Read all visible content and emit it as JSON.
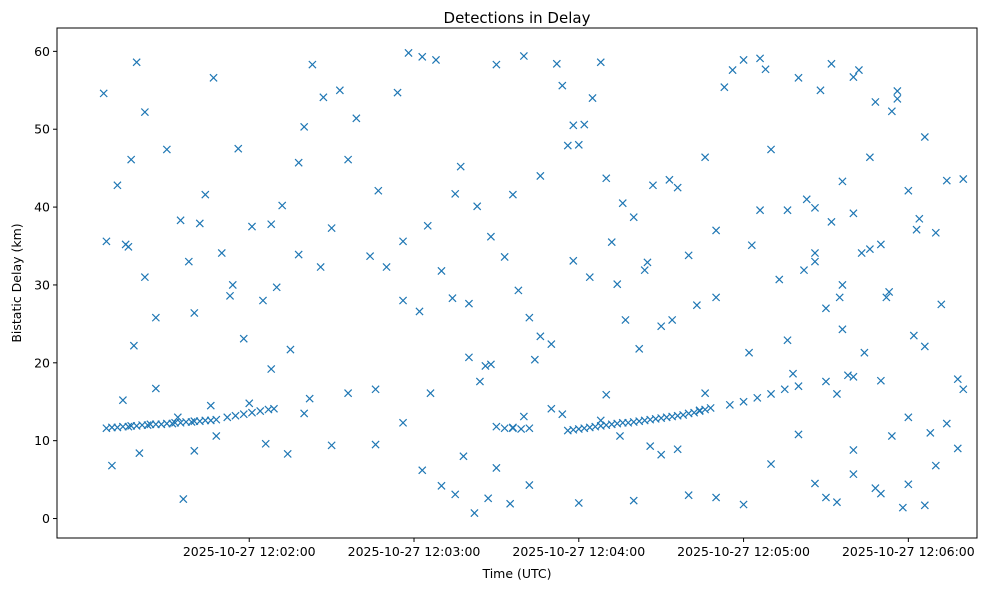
{
  "chart_data": {
    "type": "scatter",
    "title": "Detections in Delay",
    "xlabel": "Time (UTC)",
    "ylabel": "Bistatic Delay (km)",
    "x_range_seconds": [
      "2025-10-27 12:00:50",
      "2025-10-27 12:06:25"
    ],
    "ylim": [
      -2.5,
      63
    ],
    "x_ticks": [
      "2025-10-27 12:02:00",
      "2025-10-27 12:03:00",
      "2025-10-27 12:04:00",
      "2025-10-27 12:05:00",
      "2025-10-27 12:06:00"
    ],
    "y_ticks": [
      "0",
      "10",
      "20",
      "30",
      "40",
      "50",
      "60"
    ],
    "marker": "x",
    "color": "#1f77b4",
    "grid": false,
    "points": [
      [
        "2025-10-27 12:01:08",
        11.6
      ],
      [
        "2025-10-27 12:01:10",
        11.7
      ],
      [
        "2025-10-27 12:01:12",
        11.7
      ],
      [
        "2025-10-27 12:01:14",
        11.8
      ],
      [
        "2025-10-27 12:01:16",
        11.8
      ],
      [
        "2025-10-27 12:01:17",
        11.9
      ],
      [
        "2025-10-27 12:01:19",
        11.9
      ],
      [
        "2025-10-27 12:01:21",
        12.0
      ],
      [
        "2025-10-27 12:01:23",
        12.0
      ],
      [
        "2025-10-27 12:01:24",
        12.1
      ],
      [
        "2025-10-27 12:01:26",
        12.1
      ],
      [
        "2025-10-27 12:01:28",
        12.1
      ],
      [
        "2025-10-27 12:01:30",
        12.2
      ],
      [
        "2025-10-27 12:01:32",
        12.2
      ],
      [
        "2025-10-27 12:01:33",
        12.3
      ],
      [
        "2025-10-27 12:01:35",
        12.3
      ],
      [
        "2025-10-27 12:01:37",
        12.4
      ],
      [
        "2025-10-27 12:01:39",
        12.4
      ],
      [
        "2025-10-27 12:01:40",
        12.5
      ],
      [
        "2025-10-27 12:01:42",
        12.5
      ],
      [
        "2025-10-27 12:01:44",
        12.6
      ],
      [
        "2025-10-27 12:01:46",
        12.6
      ],
      [
        "2025-10-27 12:01:48",
        12.7
      ],
      [
        "2025-10-27 12:01:52",
        13.0
      ],
      [
        "2025-10-27 12:01:55",
        13.2
      ],
      [
        "2025-10-27 12:01:58",
        13.4
      ],
      [
        "2025-10-27 12:02:01",
        13.6
      ],
      [
        "2025-10-27 12:02:04",
        13.8
      ],
      [
        "2025-10-27 12:02:07",
        14.0
      ],
      [
        "2025-10-27 12:02:09",
        14.1
      ],
      [
        "2025-10-27 12:03:30",
        11.8
      ],
      [
        "2025-10-27 12:03:33",
        11.6
      ],
      [
        "2025-10-27 12:03:36",
        11.7
      ],
      [
        "2025-10-27 12:03:39",
        11.5
      ],
      [
        "2025-10-27 12:03:42",
        11.6
      ],
      [
        "2025-10-27 12:03:56",
        11.3
      ],
      [
        "2025-10-27 12:03:58",
        11.4
      ],
      [
        "2025-10-27 12:04:00",
        11.5
      ],
      [
        "2025-10-27 12:04:02",
        11.6
      ],
      [
        "2025-10-27 12:04:04",
        11.7
      ],
      [
        "2025-10-27 12:04:06",
        11.8
      ],
      [
        "2025-10-27 12:04:08",
        11.9
      ],
      [
        "2025-10-27 12:04:10",
        12.0
      ],
      [
        "2025-10-27 12:04:12",
        12.1
      ],
      [
        "2025-10-27 12:04:14",
        12.2
      ],
      [
        "2025-10-27 12:04:16",
        12.3
      ],
      [
        "2025-10-27 12:04:18",
        12.3
      ],
      [
        "2025-10-27 12:04:20",
        12.4
      ],
      [
        "2025-10-27 12:04:22",
        12.5
      ],
      [
        "2025-10-27 12:04:24",
        12.6
      ],
      [
        "2025-10-27 12:04:26",
        12.7
      ],
      [
        "2025-10-27 12:04:28",
        12.8
      ],
      [
        "2025-10-27 12:04:30",
        12.9
      ],
      [
        "2025-10-27 12:04:32",
        13.0
      ],
      [
        "2025-10-27 12:04:34",
        13.1
      ],
      [
        "2025-10-27 12:04:36",
        13.2
      ],
      [
        "2025-10-27 12:04:38",
        13.3
      ],
      [
        "2025-10-27 12:04:40",
        13.5
      ],
      [
        "2025-10-27 12:04:42",
        13.6
      ],
      [
        "2025-10-27 12:04:44",
        13.8
      ],
      [
        "2025-10-27 12:04:46",
        14.0
      ],
      [
        "2025-10-27 12:04:48",
        14.2
      ],
      [
        "2025-10-27 12:04:55",
        14.6
      ],
      [
        "2025-10-27 12:05:00",
        15.0
      ],
      [
        "2025-10-27 12:05:05",
        15.5
      ],
      [
        "2025-10-27 12:05:10",
        16.0
      ],
      [
        "2025-10-27 12:05:15",
        16.6
      ],
      [
        "2025-10-27 12:05:20",
        17.0
      ],
      [
        "2025-10-27 12:01:07",
        54.6
      ],
      [
        "2025-10-27 12:01:12",
        42.8
      ],
      [
        "2025-10-27 12:01:15",
        35.2
      ],
      [
        "2025-10-27 12:01:17",
        46.1
      ],
      [
        "2025-10-27 12:01:19",
        58.6
      ],
      [
        "2025-10-27 12:01:22",
        52.2
      ],
      [
        "2025-10-27 12:01:26",
        25.8
      ],
      [
        "2025-10-27 12:01:30",
        47.4
      ],
      [
        "2025-10-27 12:01:35",
        38.3
      ],
      [
        "2025-10-27 12:01:38",
        33.0
      ],
      [
        "2025-10-27 12:01:42",
        37.9
      ],
      [
        "2025-10-27 12:01:44",
        41.6
      ],
      [
        "2025-10-27 12:01:47",
        56.6
      ],
      [
        "2025-10-27 12:01:50",
        34.1
      ],
      [
        "2025-10-27 12:01:53",
        28.6
      ],
      [
        "2025-10-27 12:01:56",
        47.5
      ],
      [
        "2025-10-27 12:01:58",
        23.1
      ],
      [
        "2025-10-27 12:02:01",
        37.5
      ],
      [
        "2025-10-27 12:02:05",
        28.0
      ],
      [
        "2025-10-27 12:02:08",
        37.8
      ],
      [
        "2025-10-27 12:02:12",
        40.2
      ],
      [
        "2025-10-27 12:02:15",
        21.7
      ],
      [
        "2025-10-27 12:02:18",
        45.7
      ],
      [
        "2025-10-27 12:02:20",
        50.3
      ],
      [
        "2025-10-27 12:02:23",
        58.3
      ],
      [
        "2025-10-27 12:02:27",
        54.1
      ],
      [
        "2025-10-27 12:02:30",
        37.3
      ],
      [
        "2025-10-27 12:02:33",
        55.0
      ],
      [
        "2025-10-27 12:02:36",
        46.1
      ],
      [
        "2025-10-27 12:02:39",
        51.4
      ],
      [
        "2025-10-27 12:02:44",
        33.7
      ],
      [
        "2025-10-27 12:02:47",
        42.1
      ],
      [
        "2025-10-27 12:02:50",
        32.3
      ],
      [
        "2025-10-27 12:02:54",
        54.7
      ],
      [
        "2025-10-27 12:02:56",
        28.0
      ],
      [
        "2025-10-27 12:02:58",
        59.8
      ],
      [
        "2025-10-27 12:03:03",
        59.3
      ],
      [
        "2025-10-27 12:03:05",
        37.6
      ],
      [
        "2025-10-27 12:03:08",
        58.9
      ],
      [
        "2025-10-27 12:03:10",
        31.8
      ],
      [
        "2025-10-27 12:03:15",
        41.7
      ],
      [
        "2025-10-27 12:03:17",
        45.2
      ],
      [
        "2025-10-27 12:03:20",
        20.7
      ],
      [
        "2025-10-27 12:03:23",
        40.1
      ],
      [
        "2025-10-27 12:03:26",
        19.6
      ],
      [
        "2025-10-27 12:03:28",
        36.2
      ],
      [
        "2025-10-27 12:03:30",
        58.3
      ],
      [
        "2025-10-27 12:03:33",
        33.6
      ],
      [
        "2025-10-27 12:03:36",
        41.6
      ],
      [
        "2025-10-27 12:03:38",
        29.3
      ],
      [
        "2025-10-27 12:03:40",
        59.4
      ],
      [
        "2025-10-27 12:03:42",
        25.8
      ],
      [
        "2025-10-27 12:03:44",
        20.4
      ],
      [
        "2025-10-27 12:03:46",
        44.0
      ],
      [
        "2025-10-27 12:03:50",
        22.4
      ],
      [
        "2025-10-27 12:03:52",
        58.4
      ],
      [
        "2025-10-27 12:03:54",
        55.6
      ],
      [
        "2025-10-27 12:03:56",
        47.9
      ],
      [
        "2025-10-27 12:03:58",
        50.5
      ],
      [
        "2025-10-27 12:04:00",
        48.0
      ],
      [
        "2025-10-27 12:04:02",
        50.6
      ],
      [
        "2025-10-27 12:04:05",
        54.0
      ],
      [
        "2025-10-27 12:04:08",
        58.6
      ],
      [
        "2025-10-27 12:04:10",
        43.7
      ],
      [
        "2025-10-27 12:04:12",
        35.5
      ],
      [
        "2025-10-27 12:04:14",
        30.1
      ],
      [
        "2025-10-27 12:04:17",
        25.5
      ],
      [
        "2025-10-27 12:04:20",
        38.7
      ],
      [
        "2025-10-27 12:04:22",
        21.8
      ],
      [
        "2025-10-27 12:04:25",
        32.9
      ],
      [
        "2025-10-27 12:04:27",
        42.8
      ],
      [
        "2025-10-27 12:04:30",
        24.7
      ],
      [
        "2025-10-27 12:04:33",
        43.5
      ],
      [
        "2025-10-27 12:04:36",
        42.5
      ],
      [
        "2025-10-27 12:04:40",
        33.8
      ],
      [
        "2025-10-27 12:04:43",
        27.4
      ],
      [
        "2025-10-27 12:04:46",
        46.4
      ],
      [
        "2025-10-27 12:04:50",
        37.0
      ],
      [
        "2025-10-27 12:04:53",
        55.4
      ],
      [
        "2025-10-27 12:04:56",
        57.6
      ],
      [
        "2025-10-27 12:05:00",
        58.9
      ],
      [
        "2025-10-27 12:05:03",
        35.1
      ],
      [
        "2025-10-27 12:05:06",
        59.1
      ],
      [
        "2025-10-27 12:05:08",
        57.7
      ],
      [
        "2025-10-27 12:05:10",
        47.4
      ],
      [
        "2025-10-27 12:05:13",
        30.7
      ],
      [
        "2025-10-27 12:05:16",
        39.6
      ],
      [
        "2025-10-27 12:05:20",
        56.6
      ],
      [
        "2025-10-27 12:05:23",
        41.0
      ],
      [
        "2025-10-27 12:05:26",
        33.0
      ],
      [
        "2025-10-27 12:05:28",
        55.0
      ],
      [
        "2025-10-27 12:05:32",
        58.4
      ],
      [
        "2025-10-27 12:05:35",
        28.4
      ],
      [
        "2025-10-27 12:05:38",
        18.4
      ],
      [
        "2025-10-27 12:05:40",
        56.7
      ],
      [
        "2025-10-27 12:05:43",
        34.1
      ],
      [
        "2025-10-27 12:05:46",
        46.4
      ],
      [
        "2025-10-27 12:05:50",
        35.2
      ],
      [
        "2025-10-27 12:05:53",
        29.1
      ],
      [
        "2025-10-27 12:05:56",
        54.9
      ],
      [
        "2025-10-27 12:06:00",
        42.1
      ],
      [
        "2025-10-27 12:06:03",
        37.1
      ],
      [
        "2025-10-27 12:06:06",
        49.0
      ],
      [
        "2025-10-27 12:06:10",
        36.7
      ],
      [
        "2025-10-27 12:06:14",
        43.4
      ],
      [
        "2025-10-27 12:06:18",
        17.9
      ],
      [
        "2025-10-27 12:06:20",
        43.6
      ],
      [
        "2025-10-27 12:01:10",
        6.8
      ],
      [
        "2025-10-27 12:01:14",
        15.2
      ],
      [
        "2025-10-27 12:01:20",
        8.4
      ],
      [
        "2025-10-27 12:01:26",
        16.7
      ],
      [
        "2025-10-27 12:01:36",
        2.5
      ],
      [
        "2025-10-27 12:01:40",
        8.7
      ],
      [
        "2025-10-27 12:01:48",
        10.6
      ],
      [
        "2025-10-27 12:02:06",
        9.6
      ],
      [
        "2025-10-27 12:02:14",
        8.3
      ],
      [
        "2025-10-27 12:02:20",
        13.5
      ],
      [
        "2025-10-27 12:02:30",
        9.4
      ],
      [
        "2025-10-27 12:02:46",
        9.5
      ],
      [
        "2025-10-27 12:02:56",
        12.3
      ],
      [
        "2025-10-27 12:03:03",
        6.2
      ],
      [
        "2025-10-27 12:03:10",
        4.2
      ],
      [
        "2025-10-27 12:03:15",
        3.1
      ],
      [
        "2025-10-27 12:03:22",
        0.7
      ],
      [
        "2025-10-27 12:03:27",
        2.6
      ],
      [
        "2025-10-27 12:03:30",
        6.5
      ],
      [
        "2025-10-27 12:03:35",
        1.9
      ],
      [
        "2025-10-27 12:03:42",
        4.3
      ],
      [
        "2025-10-27 12:03:50",
        14.1
      ],
      [
        "2025-10-27 12:04:00",
        2.0
      ],
      [
        "2025-10-27 12:04:08",
        12.6
      ],
      [
        "2025-10-27 12:04:15",
        10.6
      ],
      [
        "2025-10-27 12:04:20",
        2.3
      ],
      [
        "2025-10-27 12:04:30",
        8.2
      ],
      [
        "2025-10-27 12:04:40",
        3.0
      ],
      [
        "2025-10-27 12:04:50",
        2.7
      ],
      [
        "2025-10-27 12:05:00",
        1.8
      ],
      [
        "2025-10-27 12:05:10",
        7.0
      ],
      [
        "2025-10-27 12:05:20",
        10.8
      ],
      [
        "2025-10-27 12:05:30",
        2.7
      ],
      [
        "2025-10-27 12:05:40",
        5.7
      ],
      [
        "2025-10-27 12:05:50",
        3.2
      ],
      [
        "2025-10-27 12:05:58",
        1.4
      ],
      [
        "2025-10-27 12:06:06",
        1.7
      ],
      [
        "2025-10-27 12:06:10",
        6.8
      ],
      [
        "2025-10-27 12:06:14",
        12.2
      ],
      [
        "2025-10-27 12:06:20",
        16.6
      ],
      [
        "2025-10-27 12:05:26",
        4.5
      ],
      [
        "2025-10-27 12:05:34",
        2.1
      ],
      [
        "2025-10-27 12:05:40",
        8.8
      ],
      [
        "2025-10-27 12:05:48",
        3.9
      ],
      [
        "2025-10-27 12:05:54",
        10.6
      ],
      [
        "2025-10-27 12:06:00",
        4.4
      ],
      [
        "2025-10-27 12:06:08",
        11.0
      ],
      [
        "2025-10-27 12:06:18",
        9.0
      ],
      [
        "2025-10-27 12:05:30",
        17.6
      ],
      [
        "2025-10-27 12:05:40",
        18.2
      ],
      [
        "2025-10-27 12:05:50",
        17.7
      ],
      [
        "2025-10-27 12:06:00",
        13.0
      ],
      [
        "2025-10-27 12:06:06",
        22.1
      ],
      [
        "2025-10-27 12:05:30",
        27.0
      ],
      [
        "2025-10-27 12:05:36",
        24.3
      ],
      [
        "2025-10-27 12:05:44",
        21.3
      ],
      [
        "2025-10-27 12:05:52",
        28.4
      ],
      [
        "2025-10-27 12:06:02",
        23.5
      ],
      [
        "2025-10-27 12:06:12",
        27.5
      ],
      [
        "2025-10-27 12:05:26",
        39.9
      ],
      [
        "2025-10-27 12:05:32",
        38.1
      ],
      [
        "2025-10-27 12:05:40",
        39.2
      ],
      [
        "2025-10-27 12:05:46",
        34.6
      ],
      [
        "2025-10-27 12:05:54",
        52.3
      ],
      [
        "2025-10-27 12:06:04",
        38.5
      ],
      [
        "2025-10-27 12:05:36",
        43.3
      ],
      [
        "2025-10-27 12:05:42",
        57.6
      ],
      [
        "2025-10-27 12:05:48",
        53.5
      ],
      [
        "2025-10-27 12:05:56",
        53.9
      ],
      [
        "2025-10-27 12:01:08",
        35.6
      ],
      [
        "2025-10-27 12:01:16",
        34.9
      ],
      [
        "2025-10-27 12:01:22",
        31.0
      ],
      [
        "2025-10-27 12:01:40",
        26.4
      ],
      [
        "2025-10-27 12:01:54",
        30.0
      ],
      [
        "2025-10-27 12:02:10",
        29.7
      ],
      [
        "2025-10-27 12:02:18",
        33.9
      ],
      [
        "2025-10-27 12:02:26",
        32.3
      ],
      [
        "2025-10-27 12:02:36",
        16.1
      ],
      [
        "2025-10-27 12:02:46",
        16.6
      ],
      [
        "2025-10-27 12:02:56",
        35.6
      ],
      [
        "2025-10-27 12:03:02",
        26.6
      ],
      [
        "2025-10-27 12:03:14",
        28.3
      ],
      [
        "2025-10-27 12:03:20",
        27.6
      ],
      [
        "2025-10-27 12:03:24",
        17.6
      ],
      [
        "2025-10-27 12:03:28",
        19.8
      ],
      [
        "2025-10-27 12:03:46",
        23.4
      ],
      [
        "2025-10-27 12:03:58",
        33.1
      ],
      [
        "2025-10-27 12:04:04",
        31.0
      ],
      [
        "2025-10-27 12:04:16",
        40.5
      ],
      [
        "2025-10-27 12:04:24",
        31.9
      ],
      [
        "2025-10-27 12:04:34",
        25.5
      ],
      [
        "2025-10-27 12:04:46",
        16.1
      ],
      [
        "2025-10-27 12:04:50",
        28.4
      ],
      [
        "2025-10-27 12:05:02",
        21.3
      ],
      [
        "2025-10-27 12:05:06",
        39.6
      ],
      [
        "2025-10-27 12:05:16",
        22.9
      ],
      [
        "2025-10-27 12:05:22",
        31.9
      ],
      [
        "2025-10-27 12:05:26",
        34.1
      ],
      [
        "2025-10-27 12:05:36",
        30.0
      ],
      [
        "2025-10-27 12:01:18",
        22.2
      ],
      [
        "2025-10-27 12:01:34",
        13.0
      ],
      [
        "2025-10-27 12:01:46",
        14.5
      ],
      [
        "2025-10-27 12:02:00",
        14.8
      ],
      [
        "2025-10-27 12:02:08",
        19.2
      ],
      [
        "2025-10-27 12:02:22",
        15.4
      ],
      [
        "2025-10-27 12:03:06",
        16.1
      ],
      [
        "2025-10-27 12:03:18",
        8.0
      ],
      [
        "2025-10-27 12:03:36",
        11.6
      ],
      [
        "2025-10-27 12:03:40",
        13.1
      ],
      [
        "2025-10-27 12:03:54",
        13.4
      ],
      [
        "2025-10-27 12:04:10",
        15.9
      ],
      [
        "2025-10-27 12:04:26",
        9.3
      ],
      [
        "2025-10-27 12:04:36",
        8.9
      ],
      [
        "2025-10-27 12:04:44",
        13.9
      ],
      [
        "2025-10-27 12:05:18",
        18.6
      ],
      [
        "2025-10-27 12:05:34",
        16.0
      ]
    ]
  }
}
